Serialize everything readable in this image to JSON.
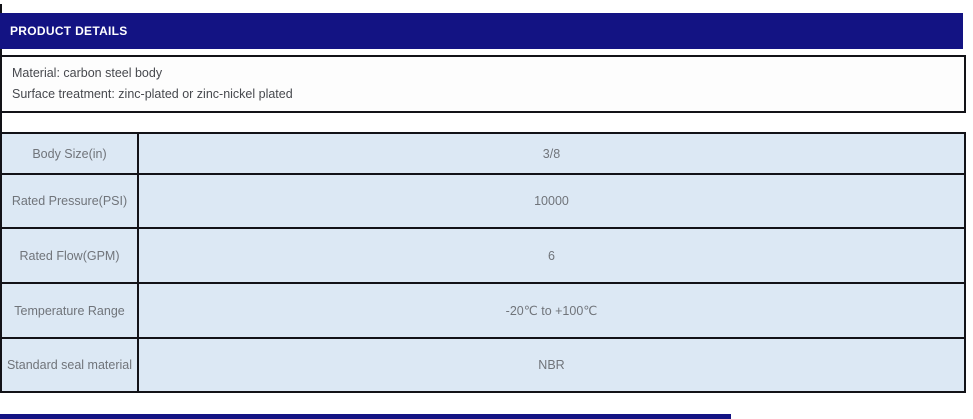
{
  "header": {
    "title": "PRODUCT DETAILS"
  },
  "material_box": {
    "lines": [
      "Material: carbon steel body",
      "Surface treatment: zinc-plated or zinc-nickel plated"
    ]
  },
  "spec_table": {
    "rows": [
      {
        "label": "Body Size(in)",
        "value": "3/8"
      },
      {
        "label": "Rated Pressure(PSI)",
        "value": "10000"
      },
      {
        "label": "Rated Flow(GPM)",
        "value": "6"
      },
      {
        "label": "Temperature Range",
        "value": "-20℃ to +100℃"
      },
      {
        "label": "Standard seal material",
        "value": "NBR"
      }
    ]
  },
  "colors": {
    "accent_navy": "#131383",
    "table_bg": "#dce8f4",
    "border": "#121217",
    "label_text": "#70747a",
    "body_text": "#47494e"
  }
}
